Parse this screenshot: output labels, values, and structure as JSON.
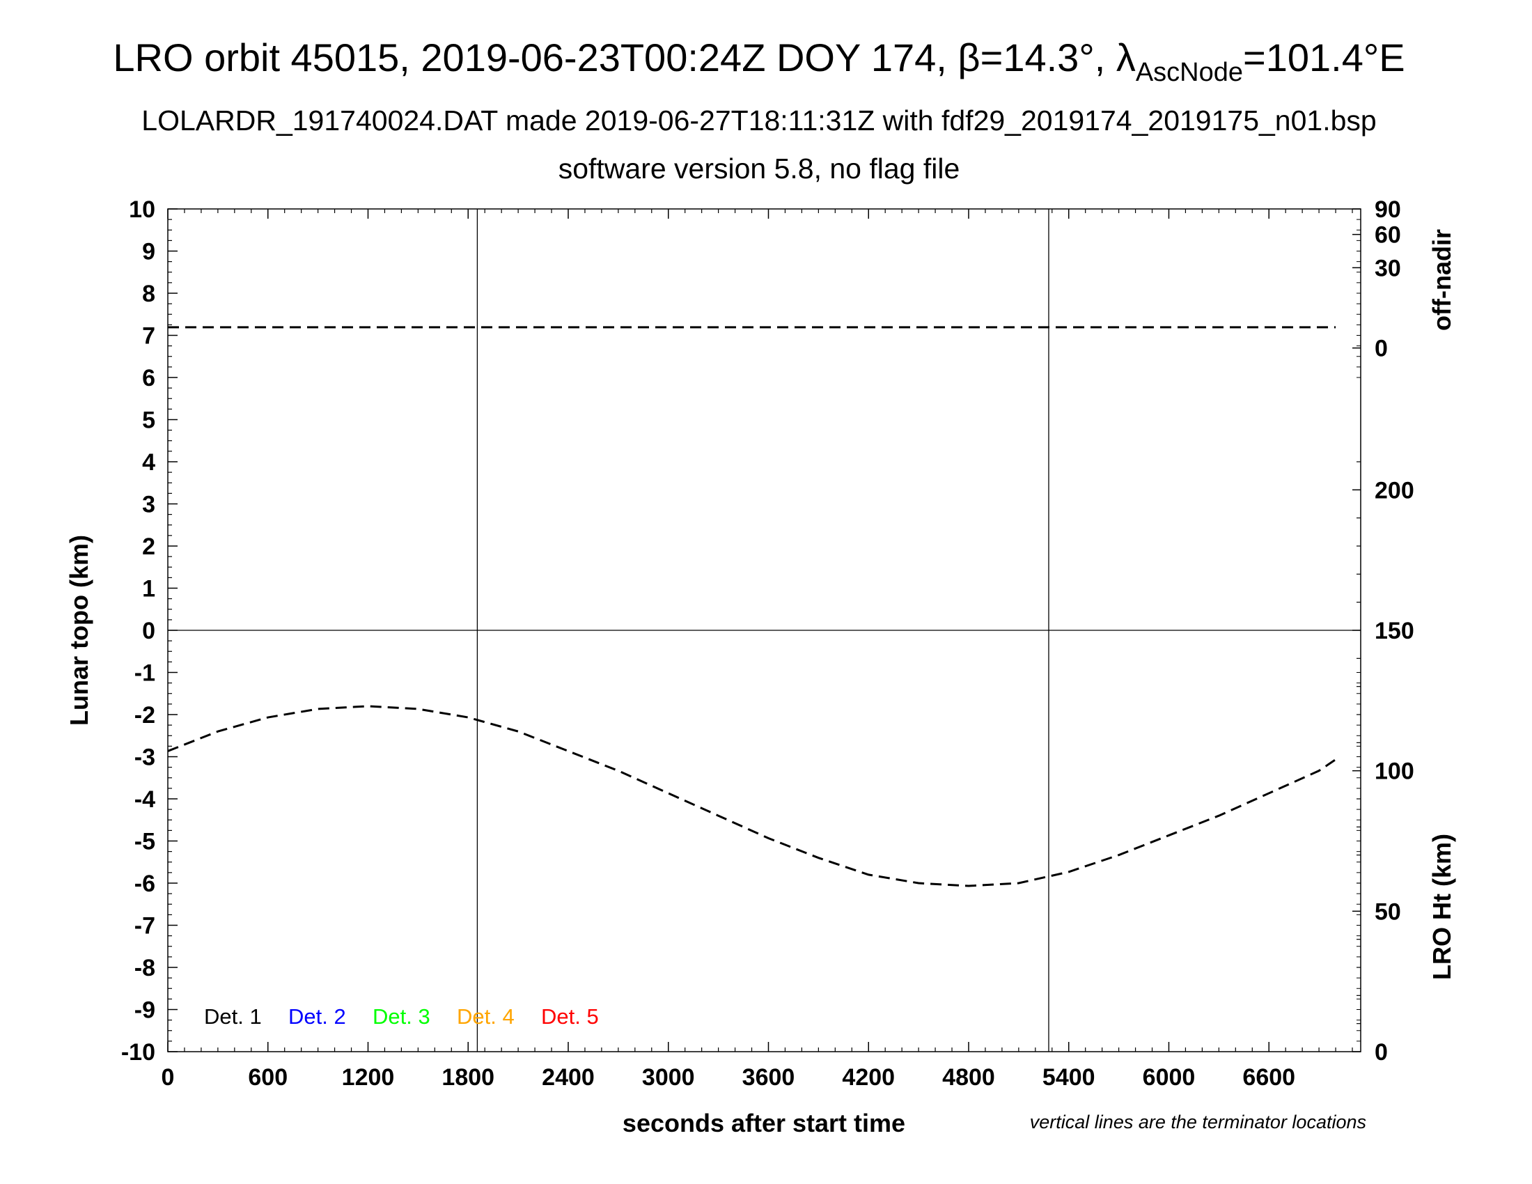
{
  "title": {
    "main_prefix": "LRO orbit 45015, 2019-06-23T00:24Z DOY 174, β=14.3°, λ",
    "main_sub": "AscNode",
    "main_suffix": "=101.4°E",
    "line2": "LOLARDR_191740024.DAT made 2019-06-27T18:11:31Z with fdf29_2019174_2019175_n01.bsp",
    "line3": "software version 5.8, no flag file"
  },
  "chart_data": {
    "type": "line",
    "xlabel": "seconds after start time",
    "ylabel": "Lunar topo (km)",
    "xlim": [
      0,
      7150
    ],
    "ylim": [
      -10,
      10
    ],
    "x_ticks": [
      0,
      600,
      1200,
      1800,
      2400,
      3000,
      3600,
      4200,
      4800,
      5400,
      6000,
      6600
    ],
    "y_ticks": [
      10,
      9,
      8,
      7,
      6,
      5,
      4,
      3,
      2,
      1,
      0,
      -1,
      -2,
      -3,
      -4,
      -5,
      -6,
      -7,
      -8,
      -9,
      -10
    ],
    "grid": "vertical terminator lines and zero line",
    "terminator_lines_x": [
      1855,
      5280
    ],
    "right_axis_top": {
      "label": "off-nadir",
      "ticks": [
        90,
        60,
        30,
        0
      ]
    },
    "right_axis_bottom": {
      "label": "LRO Ht (km)",
      "ylim": [
        0,
        300
      ],
      "ticks": [
        200,
        150,
        100,
        50,
        0
      ]
    },
    "series": [
      {
        "name": "off-nadir",
        "style": "dashed",
        "color": "#000000",
        "x": [
          0,
          7000
        ],
        "y": [
          2,
          2
        ]
      },
      {
        "name": "LRO Ht",
        "style": "dashed",
        "color": "#000000",
        "x": [
          0,
          300,
          600,
          900,
          1200,
          1500,
          1800,
          2100,
          2400,
          2700,
          3000,
          3300,
          3600,
          3900,
          4200,
          4500,
          4800,
          5100,
          5400,
          5700,
          6000,
          6300,
          6600,
          6900,
          7000
        ],
        "y": [
          107,
          114,
          119,
          122,
          123,
          122,
          119,
          114,
          107,
          100,
          92,
          84,
          76,
          69,
          63,
          60,
          59,
          60,
          64,
          70,
          77,
          84,
          92,
          100,
          104
        ]
      }
    ],
    "legend": {
      "placement": "bottom-left",
      "entries": [
        {
          "name": "Det. 1",
          "color": "#000000"
        },
        {
          "name": "Det. 2",
          "color": "#0000ff"
        },
        {
          "name": "Det. 3",
          "color": "#00ff00"
        },
        {
          "name": "Det. 4",
          "color": "#ffa500"
        },
        {
          "name": "Det. 5",
          "color": "#ff0000"
        }
      ]
    },
    "note": "vertical lines are the terminator locations"
  }
}
